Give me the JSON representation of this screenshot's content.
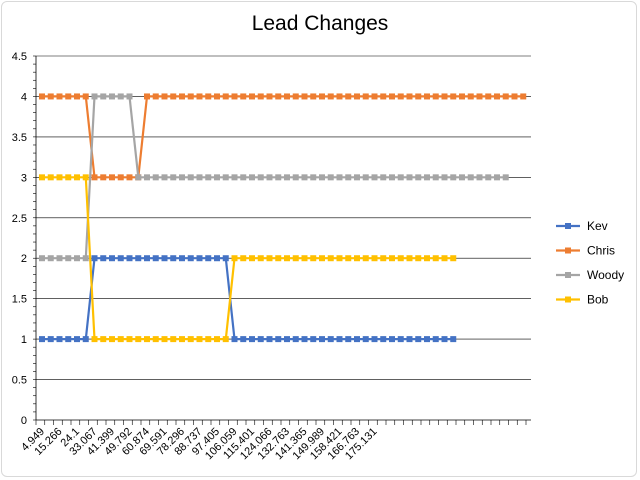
{
  "chart_data": {
    "type": "line",
    "title": "Lead Changes",
    "xlabel": "",
    "ylabel": "",
    "ylim": [
      0,
      4.5
    ],
    "ytick_step": 0.5,
    "x_tick_labels": [
      "4.949",
      "15.266",
      "24.1",
      "33.067",
      "41.399",
      "49.792",
      "60.874",
      "69.591",
      "78.296",
      "88.737",
      "97.405",
      "106.059",
      "115.401",
      "124.066",
      "132.763",
      "141.365",
      "149.989",
      "158.421",
      "166.763",
      "175.131"
    ],
    "point_count": 48,
    "label_every": 2,
    "grid": "horizontal",
    "legend_position": "right",
    "series": [
      {
        "name": "Kev",
        "color": "#4472C4",
        "segments": [
          [
            0,
            5,
            1
          ],
          [
            6,
            21,
            2
          ],
          [
            22,
            47,
            1
          ]
        ]
      },
      {
        "name": "Chris",
        "color": "#ED7D31",
        "segments": [
          [
            0,
            5,
            4
          ],
          [
            6,
            11,
            3
          ],
          [
            12,
            55,
            4
          ]
        ]
      },
      {
        "name": "Woody",
        "color": "#A5A5A5",
        "segments": [
          [
            0,
            5,
            2
          ],
          [
            6,
            10,
            4
          ],
          [
            11,
            53,
            3
          ]
        ]
      },
      {
        "name": "Bob",
        "color": "#FFC000",
        "segments": [
          [
            0,
            5,
            3
          ],
          [
            6,
            21,
            1
          ],
          [
            22,
            47,
            2
          ]
        ]
      }
    ]
  }
}
